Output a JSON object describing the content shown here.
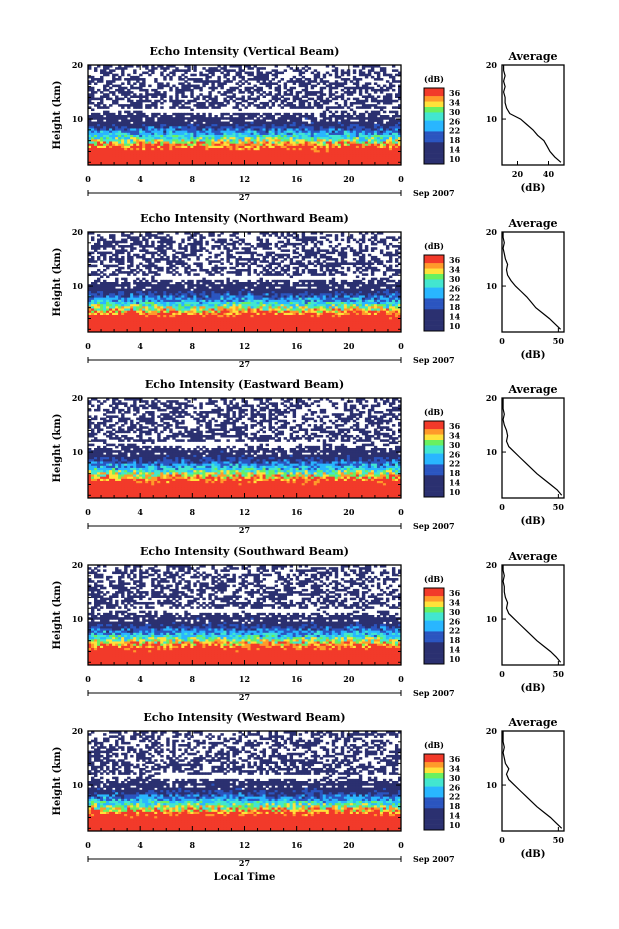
{
  "shared": {
    "ylabel": "Height (km)",
    "date_label": "Sep 2007",
    "day_label": "27",
    "colorbar_unit": "(dB)",
    "colorbar_ticks": [
      "36",
      "34",
      "30",
      "26",
      "22",
      "18",
      "14",
      "10"
    ],
    "avg_title": "Average",
    "avg_xlabel": "(dB)",
    "xlabel_bottom": "Local Time",
    "colors": {
      "low": "#2b3070",
      "mid": "#29b6ff",
      "mid2": "#69f060",
      "hi": "#ffd23a",
      "top": "#f23a2a"
    }
  },
  "chart_data": [
    {
      "type": "heatmap",
      "title": "Echo Intensity (Vertical Beam)",
      "x_ticks": [
        "0",
        "4",
        "8",
        "12",
        "16",
        "20",
        "0"
      ],
      "y_ticks": [
        "20",
        "10"
      ],
      "xlim": [
        0,
        24
      ],
      "ylim": [
        1.5,
        20
      ],
      "clim": [
        10,
        38
      ],
      "avg_profile": {
        "x_ticks": [
          "20",
          "40"
        ],
        "xlim": [
          10,
          50
        ],
        "heights": [
          2,
          3,
          4,
          5,
          6,
          7,
          8,
          9,
          10,
          11,
          12,
          13,
          14,
          15,
          16,
          17,
          18,
          19,
          20
        ],
        "values": [
          48,
          44,
          41,
          39,
          37,
          33,
          30,
          26,
          22,
          15,
          13,
          12,
          12,
          11,
          12,
          11,
          12,
          11,
          11
        ]
      }
    },
    {
      "type": "heatmap",
      "title": "Echo Intensity (Northward Beam)",
      "x_ticks": [
        "0",
        "4",
        "8",
        "12",
        "16",
        "20",
        "0"
      ],
      "y_ticks": [
        "20",
        "10"
      ],
      "xlim": [
        0,
        24
      ],
      "ylim": [
        1.5,
        20
      ],
      "clim": [
        10,
        38
      ],
      "avg_profile": {
        "x_ticks": [
          "0",
          "50"
        ],
        "xlim": [
          0,
          55
        ],
        "heights": [
          2,
          3,
          4,
          5,
          6,
          7,
          8,
          9,
          10,
          11,
          12,
          13,
          14,
          15,
          16,
          17,
          18,
          19,
          20
        ],
        "values": [
          52,
          47,
          42,
          36,
          30,
          26,
          22,
          17,
          12,
          8,
          5,
          4,
          5,
          3,
          2,
          1,
          2,
          1,
          1
        ]
      }
    },
    {
      "type": "heatmap",
      "title": "Echo Intensity (Eastward Beam)",
      "x_ticks": [
        "0",
        "4",
        "8",
        "12",
        "16",
        "20",
        "0"
      ],
      "y_ticks": [
        "20",
        "10"
      ],
      "xlim": [
        0,
        24
      ],
      "ylim": [
        1.5,
        20
      ],
      "clim": [
        10,
        38
      ],
      "avg_profile": {
        "x_ticks": [
          "0",
          "50"
        ],
        "xlim": [
          0,
          55
        ],
        "heights": [
          2,
          3,
          4,
          5,
          6,
          7,
          8,
          9,
          10,
          11,
          12,
          13,
          14,
          15,
          16,
          17,
          18,
          19,
          20
        ],
        "values": [
          53,
          49,
          43,
          37,
          31,
          26,
          21,
          16,
          11,
          6,
          4,
          5,
          4,
          2,
          1,
          2,
          1,
          1,
          1
        ]
      }
    },
    {
      "type": "heatmap",
      "title": "Echo Intensity (Southward Beam)",
      "x_ticks": [
        "0",
        "4",
        "8",
        "12",
        "16",
        "20",
        "0"
      ],
      "y_ticks": [
        "20",
        "10"
      ],
      "xlim": [
        0,
        24
      ],
      "ylim": [
        1.5,
        20
      ],
      "clim": [
        10,
        38
      ],
      "avg_profile": {
        "x_ticks": [
          "0",
          "50"
        ],
        "xlim": [
          0,
          55
        ],
        "heights": [
          2,
          3,
          4,
          5,
          6,
          7,
          8,
          9,
          10,
          11,
          12,
          13,
          14,
          15,
          16,
          17,
          18,
          19,
          20
        ],
        "values": [
          52,
          48,
          43,
          37,
          31,
          26,
          21,
          16,
          11,
          6,
          4,
          5,
          3,
          2,
          2,
          1,
          2,
          1,
          1
        ]
      }
    },
    {
      "type": "heatmap",
      "title": "Echo Intensity (Westward Beam)",
      "x_ticks": [
        "0",
        "4",
        "8",
        "12",
        "16",
        "20",
        "0"
      ],
      "y_ticks": [
        "20",
        "10"
      ],
      "xlim": [
        0,
        24
      ],
      "ylim": [
        1.5,
        20
      ],
      "clim": [
        10,
        38
      ],
      "avg_profile": {
        "x_ticks": [
          "0",
          "50"
        ],
        "xlim": [
          0,
          55
        ],
        "heights": [
          2,
          3,
          4,
          5,
          6,
          7,
          8,
          9,
          10,
          11,
          12,
          13,
          14,
          15,
          16,
          17,
          18,
          19,
          20
        ],
        "values": [
          53,
          48,
          43,
          37,
          31,
          26,
          21,
          16,
          11,
          6,
          4,
          6,
          3,
          2,
          1,
          2,
          1,
          1,
          1
        ]
      }
    }
  ]
}
